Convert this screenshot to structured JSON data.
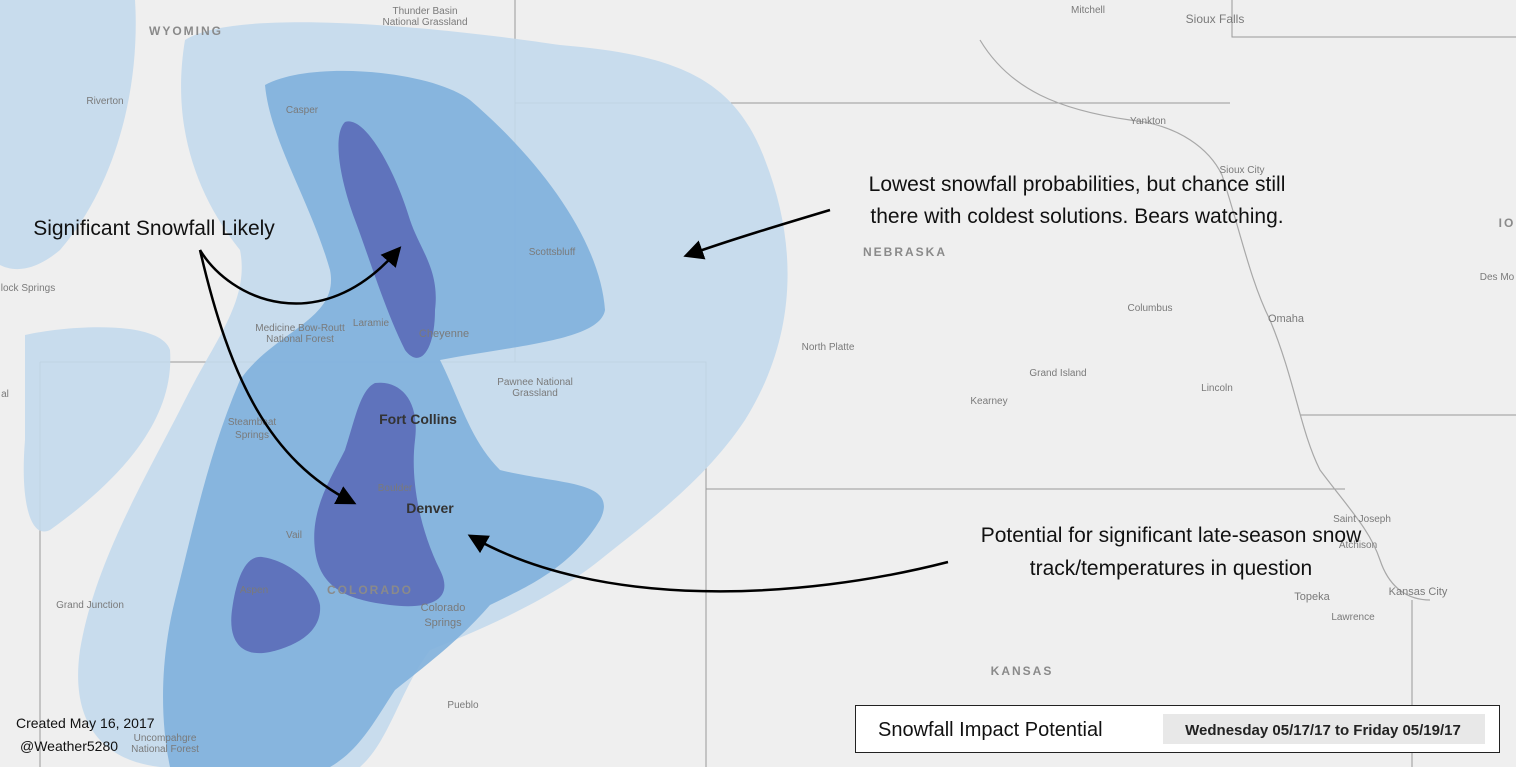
{
  "states": [
    "WYOMING",
    "NEBRASKA",
    "COLORADO",
    "KANSAS",
    "IO"
  ],
  "places": [
    "Thunder Basin",
    "National Grassland",
    "Mitchell",
    "Sioux Falls",
    "Riverton",
    "Casper",
    "Yankton",
    "Sioux City",
    "Scottsbluff",
    "Des Mo",
    "lock Springs",
    "Laramie",
    "Medicine Bow-Routt",
    "National Forest",
    "Cheyenne",
    "Columbus",
    "Omaha",
    "North Platte",
    "Grand Island",
    "Lincoln",
    "Kearney",
    "Pawnee National",
    "Grassland",
    "al",
    "Steamboat",
    "Springs",
    "Boulder",
    "Vail",
    "Saint Joseph",
    "Atchison",
    "Grand Junction",
    "Aspen",
    "Colorado",
    "Springs",
    "Topeka",
    "Kansas City",
    "Lawrence",
    "Pueblo",
    "Uncompahgre",
    "National Forest"
  ],
  "major_places": [
    "Fort Collins",
    "Denver"
  ],
  "annotations": {
    "likely": "Significant Snowfall Likely",
    "lowest": [
      "Lowest snowfall probabilities, but chance still",
      "there with coldest solutions. Bears watching."
    ],
    "potential": [
      "Potential for significant late-season snow",
      "track/temperatures in question"
    ]
  },
  "credits": [
    "Created May 16, 2017",
    "@Weather5280"
  ],
  "legend": {
    "title": "Snowfall Impact Potential",
    "period": "Wednesday 05/17/17 to Friday 05/19/17"
  }
}
